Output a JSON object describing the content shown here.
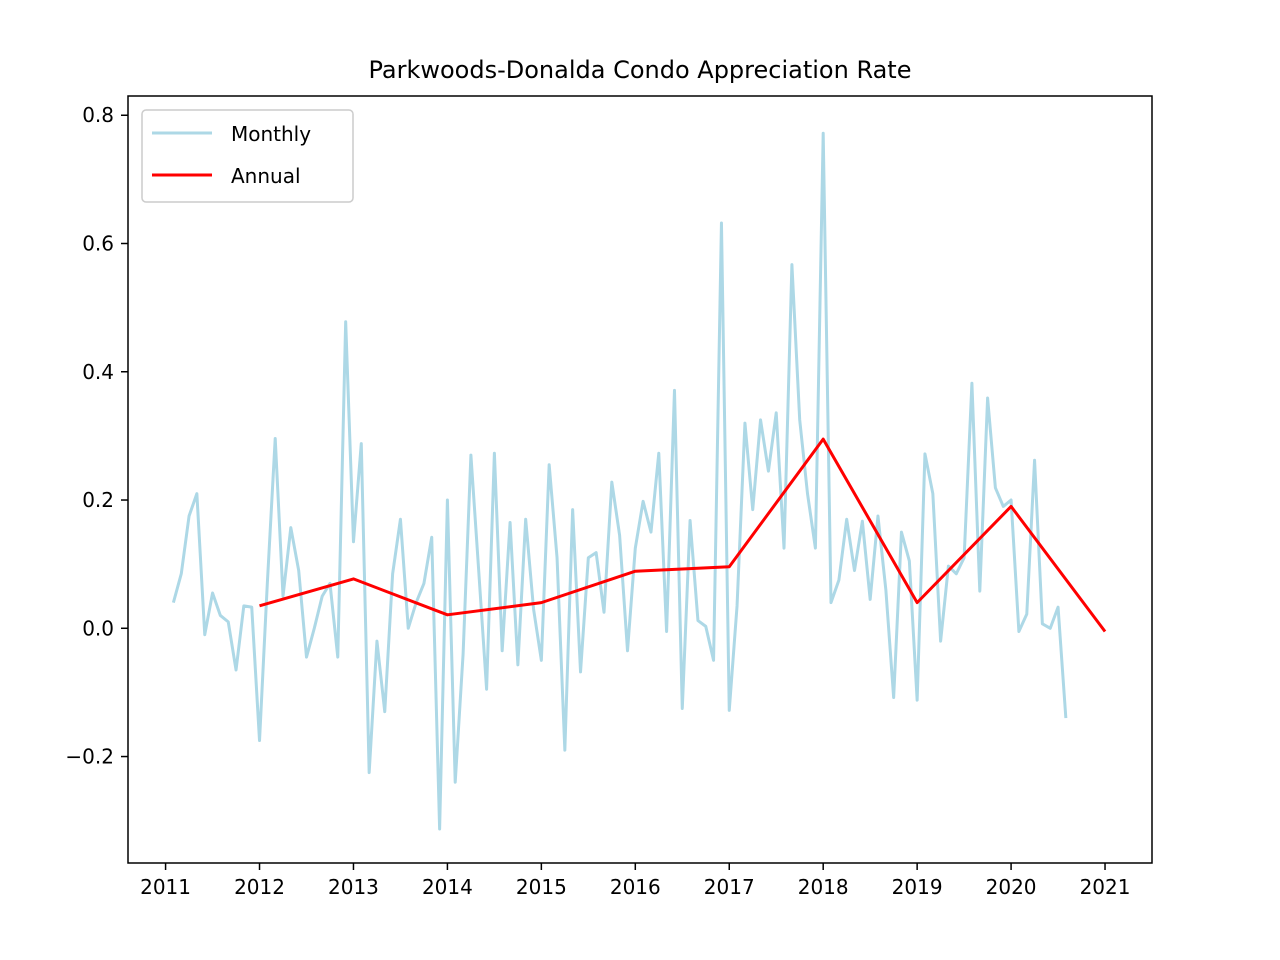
{
  "chart_data": {
    "type": "line",
    "title": "Parkwoods-Donalda Condo Appreciation Rate",
    "xlabel": "",
    "ylabel": "",
    "xlim": [
      2010.6,
      2021.5
    ],
    "ylim": [
      -0.366,
      0.83
    ],
    "x_ticks": [
      2011,
      2012,
      2013,
      2014,
      2015,
      2016,
      2017,
      2018,
      2019,
      2020,
      2021
    ],
    "x_tick_labels": [
      "2011",
      "2012",
      "2013",
      "2014",
      "2015",
      "2016",
      "2017",
      "2018",
      "2019",
      "2020",
      "2021"
    ],
    "y_ticks": [
      -0.2,
      0.0,
      0.2,
      0.4,
      0.6,
      0.8
    ],
    "y_tick_labels": [
      "−0.2",
      "0.0",
      "0.2",
      "0.4",
      "0.6",
      "0.8"
    ],
    "grid": false,
    "legend": {
      "position": "upper-left"
    },
    "series": [
      {
        "name": "Monthly",
        "color": "#add8e6",
        "x": [
          2011.083,
          2011.167,
          2011.25,
          2011.333,
          2011.417,
          2011.5,
          2011.583,
          2011.667,
          2011.75,
          2011.833,
          2011.917,
          2012.0,
          2012.083,
          2012.167,
          2012.25,
          2012.333,
          2012.417,
          2012.5,
          2012.583,
          2012.667,
          2012.75,
          2012.833,
          2012.917,
          2013.0,
          2013.083,
          2013.167,
          2013.25,
          2013.333,
          2013.417,
          2013.5,
          2013.583,
          2013.667,
          2013.75,
          2013.833,
          2013.917,
          2014.0,
          2014.083,
          2014.167,
          2014.25,
          2014.333,
          2014.417,
          2014.5,
          2014.583,
          2014.667,
          2014.75,
          2014.833,
          2014.917,
          2015.0,
          2015.083,
          2015.167,
          2015.25,
          2015.333,
          2015.417,
          2015.5,
          2015.583,
          2015.667,
          2015.75,
          2015.833,
          2015.917,
          2016.0,
          2016.083,
          2016.167,
          2016.25,
          2016.333,
          2016.417,
          2016.5,
          2016.583,
          2016.667,
          2016.75,
          2016.833,
          2016.917,
          2017.0,
          2017.083,
          2017.167,
          2017.25,
          2017.333,
          2017.417,
          2017.5,
          2017.583,
          2017.667,
          2017.75,
          2017.833,
          2017.917,
          2018.0,
          2018.083,
          2018.167,
          2018.25,
          2018.333,
          2018.417,
          2018.5,
          2018.583,
          2018.667,
          2018.75,
          2018.833,
          2018.917,
          2019.0,
          2019.083,
          2019.167,
          2019.25,
          2019.333,
          2019.417,
          2019.5,
          2019.583,
          2019.667,
          2019.75,
          2019.833,
          2019.917,
          2020.0,
          2020.083,
          2020.167,
          2020.25,
          2020.333,
          2020.417,
          2020.5,
          2020.583
        ],
        "values": [
          0.04,
          0.085,
          0.175,
          0.21,
          -0.01,
          0.055,
          0.02,
          0.01,
          -0.065,
          0.035,
          0.033,
          -0.175,
          0.07,
          0.296,
          0.05,
          0.157,
          0.09,
          -0.045,
          0.0,
          0.05,
          0.07,
          -0.045,
          0.478,
          0.135,
          0.288,
          -0.225,
          -0.02,
          -0.13,
          0.085,
          0.17,
          0.0,
          0.04,
          0.07,
          0.142,
          -0.313,
          0.2,
          -0.24,
          -0.04,
          0.27,
          0.09,
          -0.095,
          0.273,
          -0.035,
          0.165,
          -0.057,
          0.17,
          0.03,
          -0.05,
          0.255,
          0.11,
          -0.19,
          0.185,
          -0.068,
          0.11,
          0.118,
          0.025,
          0.228,
          0.145,
          -0.035,
          0.125,
          0.198,
          0.15,
          0.273,
          -0.005,
          0.371,
          -0.125,
          0.168,
          0.012,
          0.003,
          -0.05,
          0.632,
          -0.128,
          0.035,
          0.32,
          0.185,
          0.325,
          0.245,
          0.336,
          0.125,
          0.567,
          0.325,
          0.21,
          0.125,
          0.772,
          0.04,
          0.075,
          0.17,
          0.09,
          0.167,
          0.045,
          0.175,
          0.06,
          -0.108,
          0.15,
          0.105,
          -0.112,
          0.272,
          0.21,
          -0.02,
          0.097,
          0.085,
          0.11,
          0.382,
          0.058,
          0.359,
          0.219,
          0.19,
          0.2,
          -0.005,
          0.022,
          0.262,
          0.007,
          0.0,
          0.033,
          -0.14
        ]
      },
      {
        "name": "Annual",
        "color": "#ff0000",
        "x": [
          2012,
          2013,
          2014,
          2015,
          2016,
          2017,
          2018,
          2019,
          2020,
          2021
        ],
        "values": [
          0.035,
          0.077,
          0.021,
          0.04,
          0.089,
          0.096,
          0.295,
          0.04,
          0.19,
          -0.005
        ]
      }
    ]
  }
}
